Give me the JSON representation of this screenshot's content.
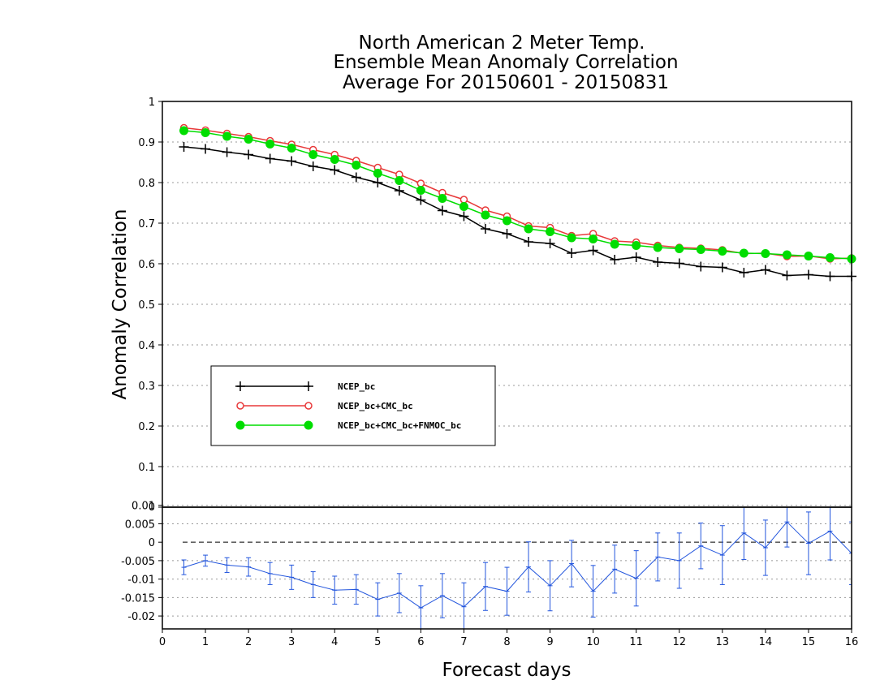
{
  "chart_data": {
    "type": "line",
    "title": [
      "North American 2 Meter Temp.",
      "Ensemble Mean Anomaly Correlation",
      "Average For 20150601 - 20150831"
    ],
    "xlabel": "Forecast days",
    "ylabel": "Anomaly Correlation",
    "xlim": [
      0,
      16
    ],
    "ylim": [
      0,
      1
    ],
    "x_ticks": [
      "0",
      "1",
      "2",
      "3",
      "4",
      "5",
      "6",
      "7",
      "8",
      "9",
      "10",
      "11",
      "12",
      "13",
      "14",
      "15",
      "16"
    ],
    "y_ticks": [
      "0",
      "0.1",
      "0.2",
      "0.3",
      "0.4",
      "0.5",
      "0.6",
      "0.7",
      "0.8",
      "0.9",
      "1"
    ],
    "grid": true,
    "legend_position": "center-left",
    "x": [
      0.5,
      1,
      1.5,
      2,
      2.5,
      3,
      3.5,
      4,
      4.5,
      5,
      5.5,
      6,
      6.5,
      7,
      7.5,
      8,
      8.5,
      9,
      9.5,
      10,
      10.5,
      11,
      11.5,
      12,
      12.5,
      13,
      13.5,
      14,
      14.5,
      15,
      15.5,
      16
    ],
    "series": [
      {
        "name": "NCEP_bc",
        "color": "#000000",
        "marker": "plus",
        "values": [
          0.888,
          0.883,
          0.875,
          0.869,
          0.859,
          0.853,
          0.84,
          0.831,
          0.813,
          0.8,
          0.78,
          0.757,
          0.731,
          0.717,
          0.686,
          0.674,
          0.654,
          0.65,
          0.626,
          0.633,
          0.61,
          0.616,
          0.604,
          0.601,
          0.593,
          0.591,
          0.578,
          0.585,
          0.571,
          0.573,
          0.569,
          0.569
        ]
      },
      {
        "name": "NCEP_bc+CMC_bc",
        "color": "#e8393a",
        "marker": "open-circle",
        "values": [
          0.935,
          0.929,
          0.921,
          0.913,
          0.903,
          0.894,
          0.881,
          0.869,
          0.854,
          0.837,
          0.82,
          0.798,
          0.775,
          0.758,
          0.732,
          0.717,
          0.693,
          0.689,
          0.669,
          0.674,
          0.656,
          0.653,
          0.645,
          0.64,
          0.638,
          0.634,
          0.625,
          0.626,
          0.618,
          0.619,
          0.612,
          0.614
        ]
      },
      {
        "name": "NCEP_bc+CMC_bc+FNMOC_bc",
        "color": "#00dd00",
        "marker": "filled-circle",
        "values": [
          0.928,
          0.923,
          0.914,
          0.907,
          0.895,
          0.885,
          0.869,
          0.857,
          0.843,
          0.823,
          0.805,
          0.781,
          0.761,
          0.741,
          0.72,
          0.706,
          0.686,
          0.679,
          0.664,
          0.661,
          0.648,
          0.645,
          0.64,
          0.637,
          0.635,
          0.631,
          0.626,
          0.625,
          0.622,
          0.619,
          0.615,
          0.612
        ]
      }
    ],
    "difference_panel": {
      "ylim": [
        -0.0235,
        0.0095
      ],
      "y_ticks": [
        "-0.02",
        "-0.015",
        "-0.01",
        "-0.005",
        "0",
        "0.005",
        "0.01"
      ],
      "top_label": "0",
      "color": "#2255dd",
      "values": [
        -0.0068,
        -0.005,
        -0.0062,
        -0.0067,
        -0.0085,
        -0.0095,
        -0.0115,
        -0.013,
        -0.0128,
        -0.0155,
        -0.0138,
        -0.0178,
        -0.0145,
        -0.0175,
        -0.012,
        -0.0133,
        -0.0067,
        -0.0118,
        -0.0058,
        -0.0133,
        -0.0073,
        -0.0098,
        -0.004,
        -0.005,
        -0.001,
        -0.0035,
        0.0025,
        -0.0015,
        0.0055,
        -0.0003,
        0.003,
        -0.003
      ],
      "error": [
        0.002,
        0.0015,
        0.002,
        0.0025,
        0.003,
        0.0033,
        0.0035,
        0.0038,
        0.004,
        0.0045,
        0.0053,
        0.006,
        0.006,
        0.0065,
        0.0065,
        0.0065,
        0.0068,
        0.0068,
        0.0063,
        0.007,
        0.0065,
        0.0075,
        0.0065,
        0.0075,
        0.0062,
        0.008,
        0.0072,
        0.0075,
        0.0068,
        0.0085,
        0.0078,
        0.0085
      ]
    }
  }
}
